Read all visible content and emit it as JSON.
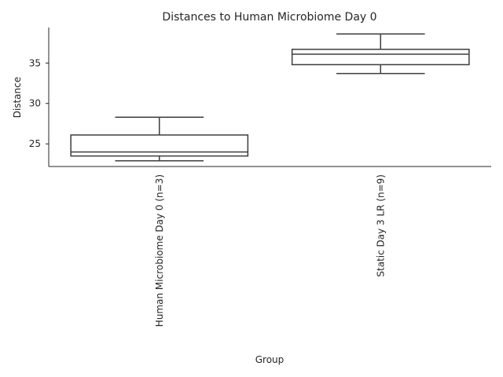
{
  "chart_data": {
    "type": "box",
    "title": "Distances to Human Microbiome Day 0",
    "xlabel": "Group",
    "ylabel": "Distance",
    "ylim": [
      22.2,
      39.4
    ],
    "yticks": [
      25,
      30,
      35
    ],
    "grid": false,
    "categories": [
      "Human Microbiome Day 0 (n=3)",
      "Static Day 3 LR (n=9)"
    ],
    "boxes": [
      {
        "whisker_low": 22.9,
        "q1": 23.5,
        "median": 24.0,
        "q3": 26.1,
        "whisker_high": 28.3
      },
      {
        "whisker_low": 33.7,
        "q1": 34.8,
        "median": 36.1,
        "q3": 36.7,
        "whisker_high": 38.6
      }
    ]
  }
}
